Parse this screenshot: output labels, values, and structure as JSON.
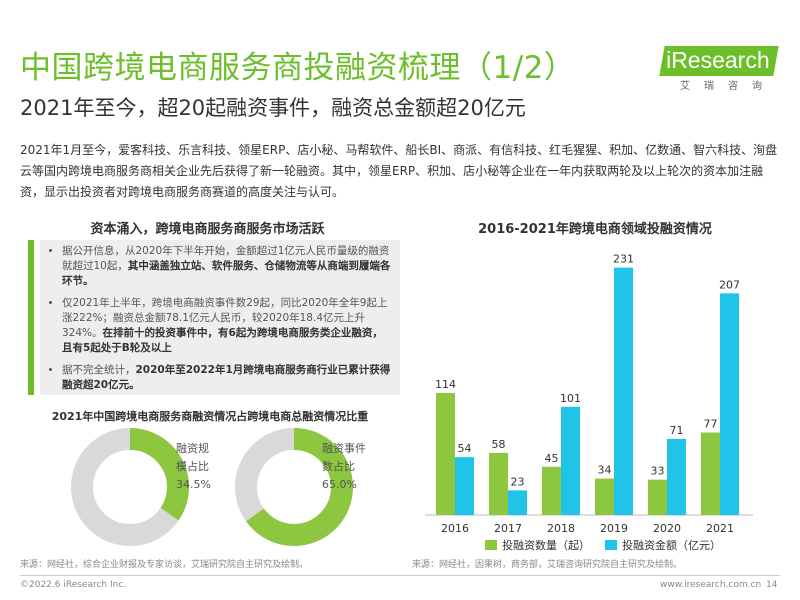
{
  "header": {
    "title": "中国跨境电商服务商投融资梳理（1/2）",
    "subtitle": "2021年至今，超20起融资事件，融资总金额超20亿元",
    "logo_text": "iResearch",
    "logo_cn": "艾瑞咨询"
  },
  "intro": "2021年1月至今，爱客科技、乐言科技、领星ERP、店小秘、马帮软件、船长BI、商派、有信科技、红毛猩猩、积加、亿数通、智六科技、洵盘云等国内跨境电商服务商相关企业先后获得了新一轮融资。其中，领星ERP、积加、店小秘等企业在一年内获取两轮及以上轮次的资本加注融资，显示出投资者对跨境电商服务商赛道的高度关注与认可。",
  "left_panel": {
    "heading": "资本涌入，跨境电商服务商服务市场活跃",
    "bullets": [
      {
        "text": "据公开信息，从2020年下半年开始，金额超过1亿元人民币量级的融资就超过10起，",
        "bold": "其中涵盖独立站、软件服务、仓储物流等从商端到履端各环节。"
      },
      {
        "text": "仅2021年上半年，跨境电商融资事件数29起，同比2020年全年9起上涨222%；融资总金额78.1亿元人民币，较2020年18.4亿元上升324%。",
        "bold": "在排前十的投资事件中，有6起为跨境电商服务类企业融资，且有5起处于B轮及以上"
      },
      {
        "text": "据不完全统计，",
        "bold": "2020年至2022年1月跨境电商服务商行业已累计获得融资超20亿元。"
      }
    ],
    "pie_heading": "2021年中国跨境电商服务商融资情况占跨境电商总融资情况比重",
    "donuts": [
      {
        "label1": "融资规",
        "label2": "模占比",
        "value_text": "34.5%",
        "value": 34.5
      },
      {
        "label1": "融资事件",
        "label2": "数占比",
        "value_text": "65.0%",
        "value": 65.0
      }
    ],
    "source": "来源：网经社，综合企业财报及专家访谈，艾瑞研究院自主研究及绘制。"
  },
  "right_panel": {
    "heading": "2016-2021年跨境电商领域投融资情况",
    "source": "来源：网经社，因果树，商务部，艾瑞咨询研究院自主研究及绘制。"
  },
  "chart_data": {
    "type": "bar",
    "title": "2016-2021年跨境电商领域投融资情况",
    "categories": [
      "2016",
      "2017",
      "2018",
      "2019",
      "2020",
      "2021"
    ],
    "series": [
      {
        "name": "投融资数量（起）",
        "values": [
          114,
          58,
          45,
          34,
          33,
          77
        ],
        "color": "#8dc63f"
      },
      {
        "name": "投融资金额（亿元）",
        "values": [
          54,
          23,
          101,
          231,
          71,
          207
        ],
        "color": "#1fc4e8"
      }
    ],
    "legend_position": "bottom",
    "grid": false
  },
  "colors": {
    "accent_green": "#6cbf2a",
    "bar_green": "#8dc63f",
    "bar_cyan": "#1fc4e8",
    "donut_grey": "#d9d9d9"
  },
  "footer": {
    "copyright": "©2022.6 iResearch Inc.",
    "url": "www.iresearch.com.cn",
    "page": "14"
  }
}
